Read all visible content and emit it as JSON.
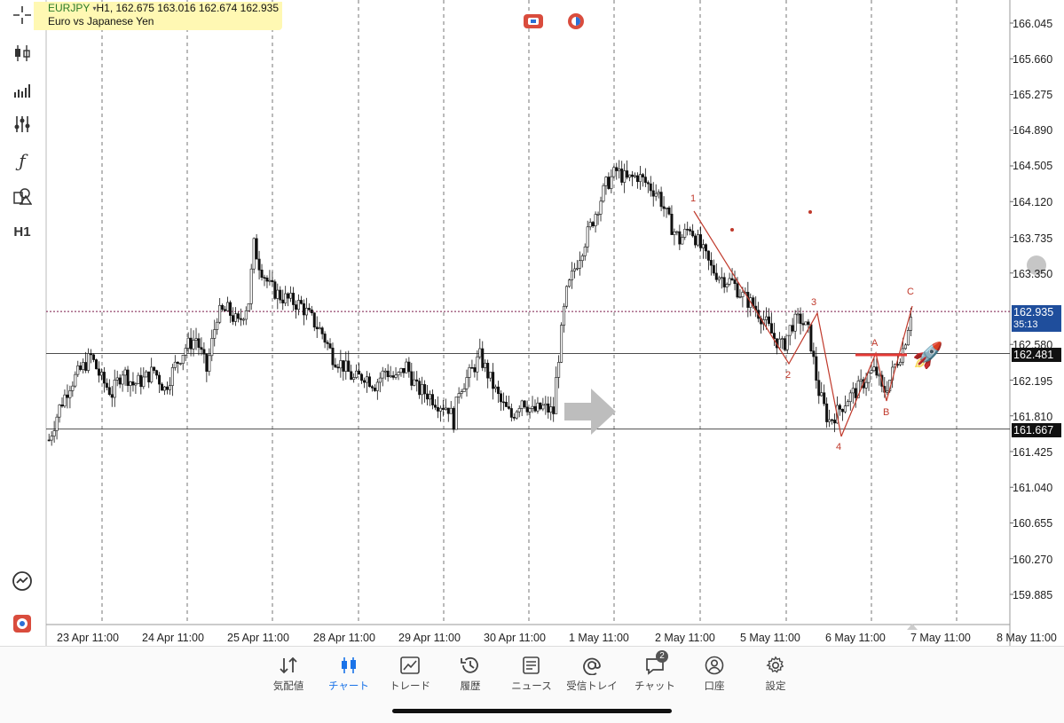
{
  "header": {
    "symbol": "EURJPY",
    "caret": "▾",
    "ohlc": "H1, 162.675 163.016 162.674 162.935",
    "description": "Euro vs Japanese Yen"
  },
  "left_toolbar": [
    {
      "name": "crosshair-icon"
    },
    {
      "name": "candle-type-icon"
    },
    {
      "name": "bar-chart-icon"
    },
    {
      "name": "indicators-icon"
    },
    {
      "name": "function-icon",
      "glyph": "ƒ"
    },
    {
      "name": "objects-icon"
    },
    {
      "name": "timeframe-label",
      "text": "H1"
    }
  ],
  "price_axis": [
    "166.045",
    "165.660",
    "165.275",
    "164.890",
    "164.505",
    "164.120",
    "163.735",
    "163.350",
    "162.580",
    "162.195",
    "161.810",
    "161.425",
    "161.040",
    "160.655",
    "160.270",
    "159.885"
  ],
  "current_price": {
    "value": "162.935",
    "countdown": "35:13",
    "color": "#1f4e9c"
  },
  "level_high": "162.481",
  "level_low": "161.667",
  "time_axis": [
    "23 Apr 11:00",
    "24 Apr 11:00",
    "25 Apr 11:00",
    "28 Apr 11:00",
    "29 Apr 11:00",
    "30 Apr 11:00",
    "1 May 11:00",
    "2 May 11:00",
    "5 May 11:00",
    "6 May 11:00",
    "7 May 11:00",
    "8 May 11:00"
  ],
  "wave_labels": [
    "1",
    "2",
    "3",
    "4",
    "A",
    "B",
    "C"
  ],
  "rocket_emoji": "🚀",
  "accent": "#1a73e8",
  "wave_color": "#c0392b",
  "chart_data": {
    "type": "candlestick",
    "symbol": "EURJPY",
    "timeframe": "H1",
    "ylim": [
      159.7,
      166.2
    ],
    "close_path": [
      [
        0,
        161.55
      ],
      [
        12,
        161.9
      ],
      [
        24,
        162.15
      ],
      [
        36,
        162.3
      ],
      [
        48,
        162.45
      ],
      [
        60,
        162.2
      ],
      [
        72,
        162.05
      ],
      [
        84,
        162.3
      ],
      [
        96,
        162.15
      ],
      [
        108,
        162.2
      ],
      [
        120,
        162.3
      ],
      [
        132,
        162.1
      ],
      [
        144,
        162.35
      ],
      [
        156,
        162.55
      ],
      [
        168,
        162.65
      ],
      [
        180,
        162.3
      ],
      [
        192,
        162.9
      ],
      [
        204,
        162.95
      ],
      [
        216,
        162.8
      ],
      [
        228,
        163.05
      ],
      [
        234,
        163.65
      ],
      [
        240,
        163.45
      ],
      [
        252,
        163.2
      ],
      [
        264,
        163.1
      ],
      [
        276,
        163.05
      ],
      [
        288,
        163.0
      ],
      [
        300,
        162.85
      ],
      [
        312,
        162.7
      ],
      [
        324,
        162.45
      ],
      [
        336,
        162.35
      ],
      [
        348,
        162.2
      ],
      [
        360,
        162.25
      ],
      [
        372,
        162.15
      ],
      [
        384,
        162.3
      ],
      [
        396,
        162.2
      ],
      [
        408,
        162.35
      ],
      [
        420,
        162.1
      ],
      [
        432,
        162.05
      ],
      [
        444,
        161.95
      ],
      [
        456,
        161.9
      ],
      [
        462,
        161.75
      ],
      [
        468,
        162.1
      ],
      [
        480,
        162.25
      ],
      [
        492,
        162.45
      ],
      [
        504,
        162.2
      ],
      [
        516,
        161.95
      ],
      [
        528,
        161.8
      ],
      [
        540,
        162.0
      ],
      [
        552,
        161.85
      ],
      [
        564,
        161.9
      ],
      [
        576,
        161.85
      ],
      [
        580,
        162.3
      ],
      [
        590,
        163.1
      ],
      [
        600,
        163.4
      ],
      [
        612,
        163.7
      ],
      [
        624,
        164.0
      ],
      [
        636,
        164.3
      ],
      [
        648,
        164.45
      ],
      [
        660,
        164.35
      ],
      [
        672,
        164.4
      ],
      [
        684,
        164.3
      ],
      [
        696,
        164.2
      ],
      [
        708,
        163.9
      ],
      [
        720,
        163.7
      ],
      [
        732,
        163.85
      ],
      [
        740,
        163.7
      ],
      [
        756,
        163.4
      ],
      [
        768,
        163.3
      ],
      [
        780,
        163.25
      ],
      [
        792,
        163.1
      ],
      [
        804,
        163.0
      ],
      [
        816,
        162.85
      ],
      [
        828,
        162.65
      ],
      [
        838,
        162.55
      ],
      [
        848,
        162.8
      ],
      [
        858,
        162.85
      ],
      [
        868,
        162.7
      ],
      [
        878,
        162.1
      ],
      [
        890,
        161.75
      ],
      [
        900,
        161.85
      ],
      [
        912,
        162.0
      ],
      [
        924,
        162.1
      ],
      [
        936,
        162.25
      ],
      [
        944,
        162.3
      ],
      [
        952,
        162.05
      ],
      [
        960,
        162.2
      ],
      [
        968,
        162.4
      ],
      [
        976,
        162.55
      ],
      [
        984,
        162.93
      ]
    ]
  },
  "nav": [
    {
      "name": "nav-quotes",
      "label": "気配値",
      "icon": "quotes-icon"
    },
    {
      "name": "nav-chart",
      "label": "チャート",
      "icon": "candlestick-icon",
      "active": true
    },
    {
      "name": "nav-trade",
      "label": "トレード",
      "icon": "trade-icon"
    },
    {
      "name": "nav-history",
      "label": "履歴",
      "icon": "history-icon"
    },
    {
      "name": "nav-news",
      "label": "ニュース",
      "icon": "news-icon"
    },
    {
      "name": "nav-mailbox",
      "label": "受信トレイ",
      "icon": "at-icon"
    },
    {
      "name": "nav-chat",
      "label": "チャット",
      "icon": "chat-icon",
      "badge": "2"
    },
    {
      "name": "nav-account",
      "label": "口座",
      "icon": "account-icon"
    },
    {
      "name": "nav-settings",
      "label": "設定",
      "icon": "gear-icon"
    }
  ]
}
